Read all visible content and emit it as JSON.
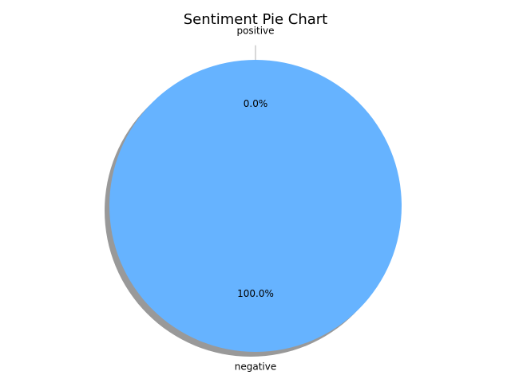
{
  "chart_data": {
    "type": "pie",
    "title": "Sentiment Pie Chart",
    "slices": [
      {
        "label": "positive",
        "value": 0.0,
        "percent_label": "0.0%",
        "color": "#ff9999",
        "exploded": true
      },
      {
        "label": "negative",
        "value": 100.0,
        "percent_label": "100.0%",
        "color": "#66b3ff",
        "exploded": false
      }
    ],
    "shadow": true,
    "start_angle_deg": 90,
    "legend": "none"
  }
}
